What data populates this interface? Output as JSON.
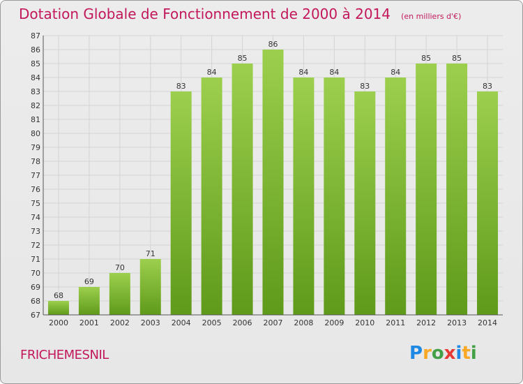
{
  "chart_data": {
    "type": "bar",
    "title": "Dotation Globale de Fonctionnement de 2000 à 2014",
    "subtitle": "(en milliers d'€)",
    "categories": [
      "2000",
      "2001",
      "2002",
      "2003",
      "2004",
      "2005",
      "2006",
      "2007",
      "2008",
      "2009",
      "2010",
      "2011",
      "2012",
      "2013",
      "2014"
    ],
    "values": [
      68,
      69,
      70,
      71,
      83,
      84,
      85,
      86,
      84,
      84,
      83,
      84,
      85,
      85,
      83
    ],
    "xlabel": "",
    "ylabel": "",
    "ylim": [
      67,
      87
    ],
    "yticks": [
      67,
      68,
      69,
      70,
      71,
      72,
      73,
      74,
      75,
      76,
      77,
      78,
      79,
      80,
      81,
      82,
      83,
      84,
      85,
      86,
      87
    ],
    "grid": true,
    "bar_color_top": "#9ccf4d",
    "bar_color_bottom": "#5f9a1a"
  },
  "footer": {
    "commune": "FRICHEMESNIL",
    "logo": "Proxiti"
  }
}
